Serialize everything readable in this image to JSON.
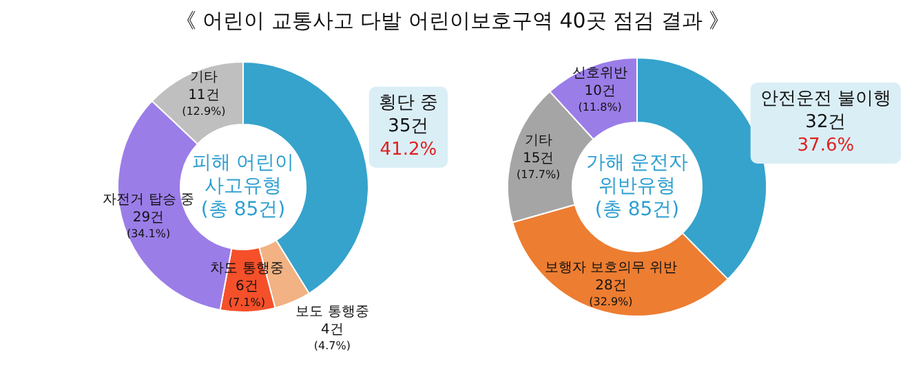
{
  "chart_data": [
    {
      "type": "other",
      "title": "《 어린이 교통사고 다발 어린이보호구역 40곳 점검 결과 》"
    },
    {
      "type": "donut",
      "title": "피해 어린이 사고유형 (총 85건)",
      "categories": [
        "횡단 중",
        "보도 통행중",
        "차도 통행중",
        "자전거 탑승 중",
        "기타"
      ],
      "values": [
        35,
        4,
        6,
        29,
        11
      ],
      "value_labels": [
        "35건 41.2%",
        "4건 (4.7%)",
        "6건 (7.1%)",
        "29건 (34.1%)",
        "11건 (12.9%)"
      ],
      "colors": [
        "#35a3cc",
        "#f2b283",
        "#f5502a",
        "#9b7de8",
        "#bfbfbf"
      ]
    },
    {
      "type": "donut",
      "title": "가해 운전자 위반유형 (총 85건)",
      "categories": [
        "안전운전 불이행",
        "보행자 보호의무 위반",
        "기타",
        "신호위반"
      ],
      "values": [
        32,
        28,
        15,
        10
      ],
      "value_labels": [
        "32건 37.6%",
        "28건 (32.9%)",
        "15건 (17.7%)",
        "10건 (11.8%)"
      ],
      "colors": [
        "#35a3cc",
        "#ed7d31",
        "#a5a5a5",
        "#9b7de8"
      ]
    }
  ]
}
